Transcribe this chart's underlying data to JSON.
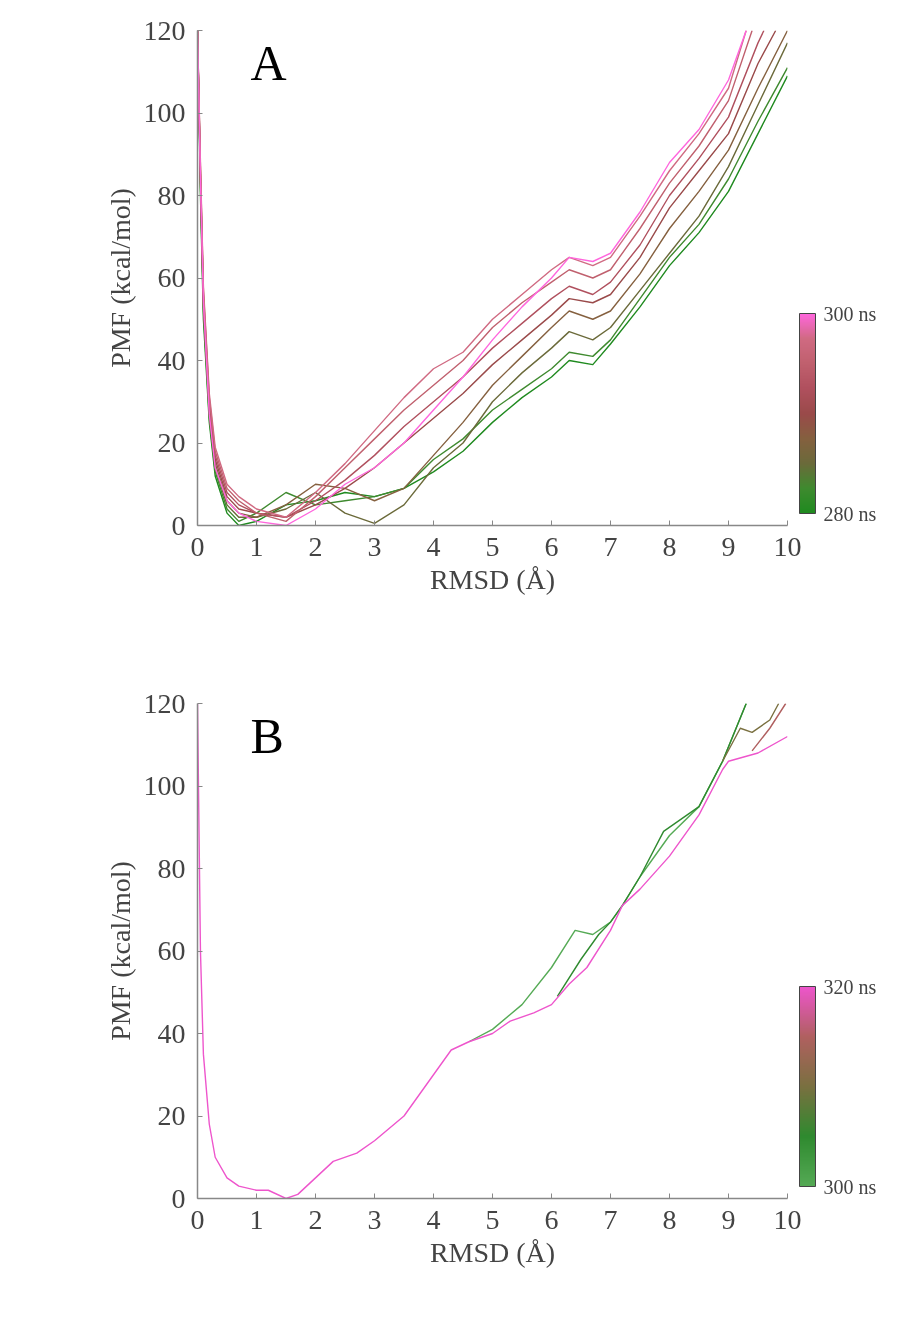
{
  "chart_data": [
    {
      "type": "line",
      "title": "A",
      "xlabel": "RMSD (Å)",
      "ylabel": "PMF (kcal/mol)",
      "xlim": [
        0,
        10
      ],
      "ylim": [
        0,
        120
      ],
      "xticks": [
        0,
        1,
        2,
        3,
        4,
        5,
        6,
        7,
        8,
        9,
        10
      ],
      "yticks": [
        0,
        20,
        40,
        60,
        80,
        100,
        120
      ],
      "clim": [
        280,
        300
      ],
      "cticks": [
        {
          "value": 280,
          "label": "280 ns"
        },
        {
          "value": 300,
          "label": "300 ns"
        }
      ],
      "series": [
        {
          "color": "#1f8a1f",
          "x": [
            0,
            0.05,
            0.1,
            0.2,
            0.3,
            0.5,
            0.7,
            1,
            1.5,
            2,
            2.5,
            3,
            3.5,
            4,
            4.5,
            5,
            5.5,
            6,
            6.3,
            6.7,
            7,
            7.5,
            8,
            8.5,
            9,
            9.5,
            10
          ],
          "values": [
            120,
            80,
            50,
            25,
            12,
            3,
            0,
            1,
            5,
            6,
            8,
            7,
            9,
            13,
            18,
            25,
            31,
            36,
            40,
            39,
            44,
            53,
            63,
            71,
            81,
            95,
            109
          ]
        },
        {
          "color": "#3f8a2f",
          "x": [
            0,
            0.05,
            0.1,
            0.2,
            0.3,
            0.5,
            0.7,
            1,
            1.5,
            2,
            2.5,
            3,
            3.5,
            4,
            4.5,
            5,
            5.5,
            6,
            6.3,
            6.7,
            7,
            7.5,
            8,
            8.5,
            9,
            9.5,
            10
          ],
          "values": [
            120,
            82,
            52,
            26,
            13,
            4,
            1,
            3,
            8,
            5,
            6,
            7,
            9,
            16,
            21,
            28,
            33,
            38,
            42,
            41,
            45,
            55,
            65,
            73,
            84,
            98,
            111
          ]
        },
        {
          "color": "#6b6a3a",
          "x": [
            0,
            0.05,
            0.1,
            0.2,
            0.3,
            0.5,
            0.7,
            1,
            1.5,
            2,
            2.5,
            3,
            3.5,
            4,
            4.5,
            5,
            5.5,
            6,
            6.3,
            6.7,
            7,
            7.5,
            8,
            8.5,
            9,
            9.5,
            10
          ],
          "values": [
            120,
            83,
            53,
            27,
            14,
            5,
            2,
            2,
            4,
            8,
            3,
            0.5,
            5,
            14,
            20,
            30,
            37,
            43,
            47,
            45,
            48,
            57,
            66,
            75,
            87,
            102,
            117
          ]
        },
        {
          "color": "#85603f",
          "x": [
            0,
            0.05,
            0.1,
            0.2,
            0.3,
            0.5,
            0.7,
            1,
            1.5,
            2,
            2.5,
            3,
            3.5,
            4,
            4.5,
            5,
            5.5,
            6,
            6.3,
            6.7,
            7,
            7.5,
            8,
            8.5,
            9,
            9.5,
            10
          ],
          "values": [
            120,
            84,
            54,
            28,
            15,
            6,
            3,
            2,
            5,
            10,
            9,
            6,
            9,
            17,
            25,
            34,
            41,
            48,
            52,
            50,
            52,
            61,
            72,
            81,
            91,
            106,
            120
          ]
        },
        {
          "color": "#9a4a4a",
          "x": [
            0,
            0.05,
            0.1,
            0.2,
            0.3,
            0.5,
            0.7,
            1,
            1.5,
            2,
            2.5,
            3,
            3.5,
            4,
            4.5,
            5,
            5.5,
            6,
            6.3,
            6.7,
            7,
            7.5,
            8,
            8.5,
            9,
            9.5,
            9.8
          ],
          "values": [
            120,
            85,
            55,
            29,
            16,
            7,
            4,
            3,
            2,
            5,
            9,
            14,
            20,
            26,
            32,
            39,
            45,
            51,
            55,
            54,
            56,
            65,
            77,
            86,
            95,
            112,
            120
          ]
        },
        {
          "color": "#b0505e",
          "x": [
            0,
            0.05,
            0.1,
            0.2,
            0.3,
            0.5,
            0.7,
            1,
            1.5,
            2,
            2.5,
            3,
            3.5,
            4,
            4.5,
            5,
            5.5,
            6,
            6.3,
            6.7,
            7,
            7.5,
            8,
            8.5,
            9,
            9.5,
            9.6
          ],
          "values": [
            120,
            86,
            56,
            30,
            17,
            8,
            5,
            3,
            2,
            6,
            11,
            17,
            24,
            30,
            36,
            43,
            49,
            55,
            58,
            56,
            59,
            68,
            80,
            89,
            99,
            117,
            120
          ]
        },
        {
          "color": "#c0606e",
          "x": [
            0,
            0.05,
            0.1,
            0.2,
            0.3,
            0.5,
            0.7,
            1,
            1.5,
            2,
            2.5,
            3,
            3.5,
            4,
            4.5,
            5,
            5.5,
            6,
            6.3,
            6.7,
            7,
            7.5,
            8,
            8.5,
            9,
            9.4
          ],
          "values": [
            120,
            87,
            57,
            31,
            18,
            9,
            6,
            3,
            1,
            7,
            14,
            21,
            28,
            34,
            40,
            48,
            54,
            59,
            62,
            60,
            62,
            72,
            83,
            92,
            103,
            120
          ]
        },
        {
          "color": "#d06a82",
          "x": [
            0,
            0.05,
            0.1,
            0.2,
            0.3,
            0.5,
            0.7,
            1,
            1.5,
            2,
            2.5,
            3,
            3.5,
            4,
            4.5,
            5,
            5.5,
            6,
            6.3,
            6.7,
            7,
            7.5,
            8,
            8.5,
            9,
            9.3
          ],
          "values": [
            120,
            88,
            58,
            32,
            19,
            10,
            7,
            4,
            2,
            8,
            15,
            23,
            31,
            38,
            42,
            50,
            56,
            62,
            65,
            63,
            65,
            75,
            86,
            95,
            106,
            120
          ]
        },
        {
          "color": "#ff66dd",
          "x": [
            0,
            0.05,
            0.1,
            0.2,
            0.3,
            0.5,
            0.7,
            1,
            1.5,
            2,
            2.5,
            3,
            3.5,
            4,
            4.5,
            5,
            5.5,
            6,
            6.3,
            6.7,
            7,
            7.5,
            8,
            8.5,
            9,
            9.3
          ],
          "values": [
            120,
            84,
            54,
            27,
            14,
            6,
            3,
            1,
            0,
            4,
            10,
            14,
            20,
            28,
            36,
            45,
            53,
            60,
            65,
            64,
            66,
            76,
            88,
            96,
            108,
            120
          ]
        }
      ]
    },
    {
      "type": "line",
      "title": "B",
      "xlabel": "RMSD (Å)",
      "ylabel": "PMF (kcal/mol)",
      "xlim": [
        0,
        10
      ],
      "ylim": [
        0,
        120
      ],
      "xticks": [
        0,
        1,
        2,
        3,
        4,
        5,
        6,
        7,
        8,
        9,
        10
      ],
      "yticks": [
        0,
        20,
        40,
        60,
        80,
        100,
        120
      ],
      "clim": [
        300,
        320
      ],
      "cticks": [
        {
          "value": 300,
          "label": "300 ns"
        },
        {
          "value": 320,
          "label": "320 ns"
        }
      ],
      "series": [
        {
          "color": "#55aa55",
          "x": [
            4.6,
            5,
            5.5,
            6,
            6.4,
            6.7,
            7,
            7.2,
            7.5,
            8,
            8.5,
            8.9,
            9.3
          ],
          "values": [
            38,
            41,
            47,
            56,
            65,
            64,
            67,
            71,
            78,
            88,
            95,
            106,
            120
          ]
        },
        {
          "color": "#2f8a2f",
          "x": [
            6.1,
            6.5,
            6.8,
            7,
            7.2,
            7.5,
            7.9,
            8.5,
            8.9,
            9.3
          ],
          "values": [
            49,
            58,
            64,
            67,
            71,
            78,
            89,
            95,
            106,
            120
          ]
        },
        {
          "color": "#7a7040",
          "x": [
            8.9,
            9.2,
            9.4,
            9.7,
            9.85
          ],
          "values": [
            106,
            114,
            113,
            116,
            120
          ]
        },
        {
          "color": "#b06060",
          "x": [
            9.4,
            9.7,
            9.97
          ],
          "values": [
            108.5,
            114,
            120
          ]
        },
        {
          "color": "#ee55cc",
          "x": [
            0,
            0.05,
            0.1,
            0.2,
            0.3,
            0.5,
            0.7,
            1,
            1.2,
            1.5,
            1.7,
            2,
            2.3,
            2.7,
            3,
            3.5,
            4,
            4.3,
            4.6,
            5,
            5.3,
            5.7,
            6,
            6.3,
            6.6,
            7,
            7.2,
            7.5,
            8,
            8.5,
            8.9,
            9,
            9.5,
            10
          ],
          "values": [
            120,
            60,
            35,
            18,
            10,
            5,
            3,
            2,
            2,
            0,
            1,
            5,
            9,
            11,
            14,
            20,
            30,
            36,
            38,
            40,
            43,
            45,
            47,
            52,
            56,
            65,
            71,
            75,
            83,
            93,
            104,
            106,
            108,
            112
          ]
        }
      ]
    }
  ]
}
